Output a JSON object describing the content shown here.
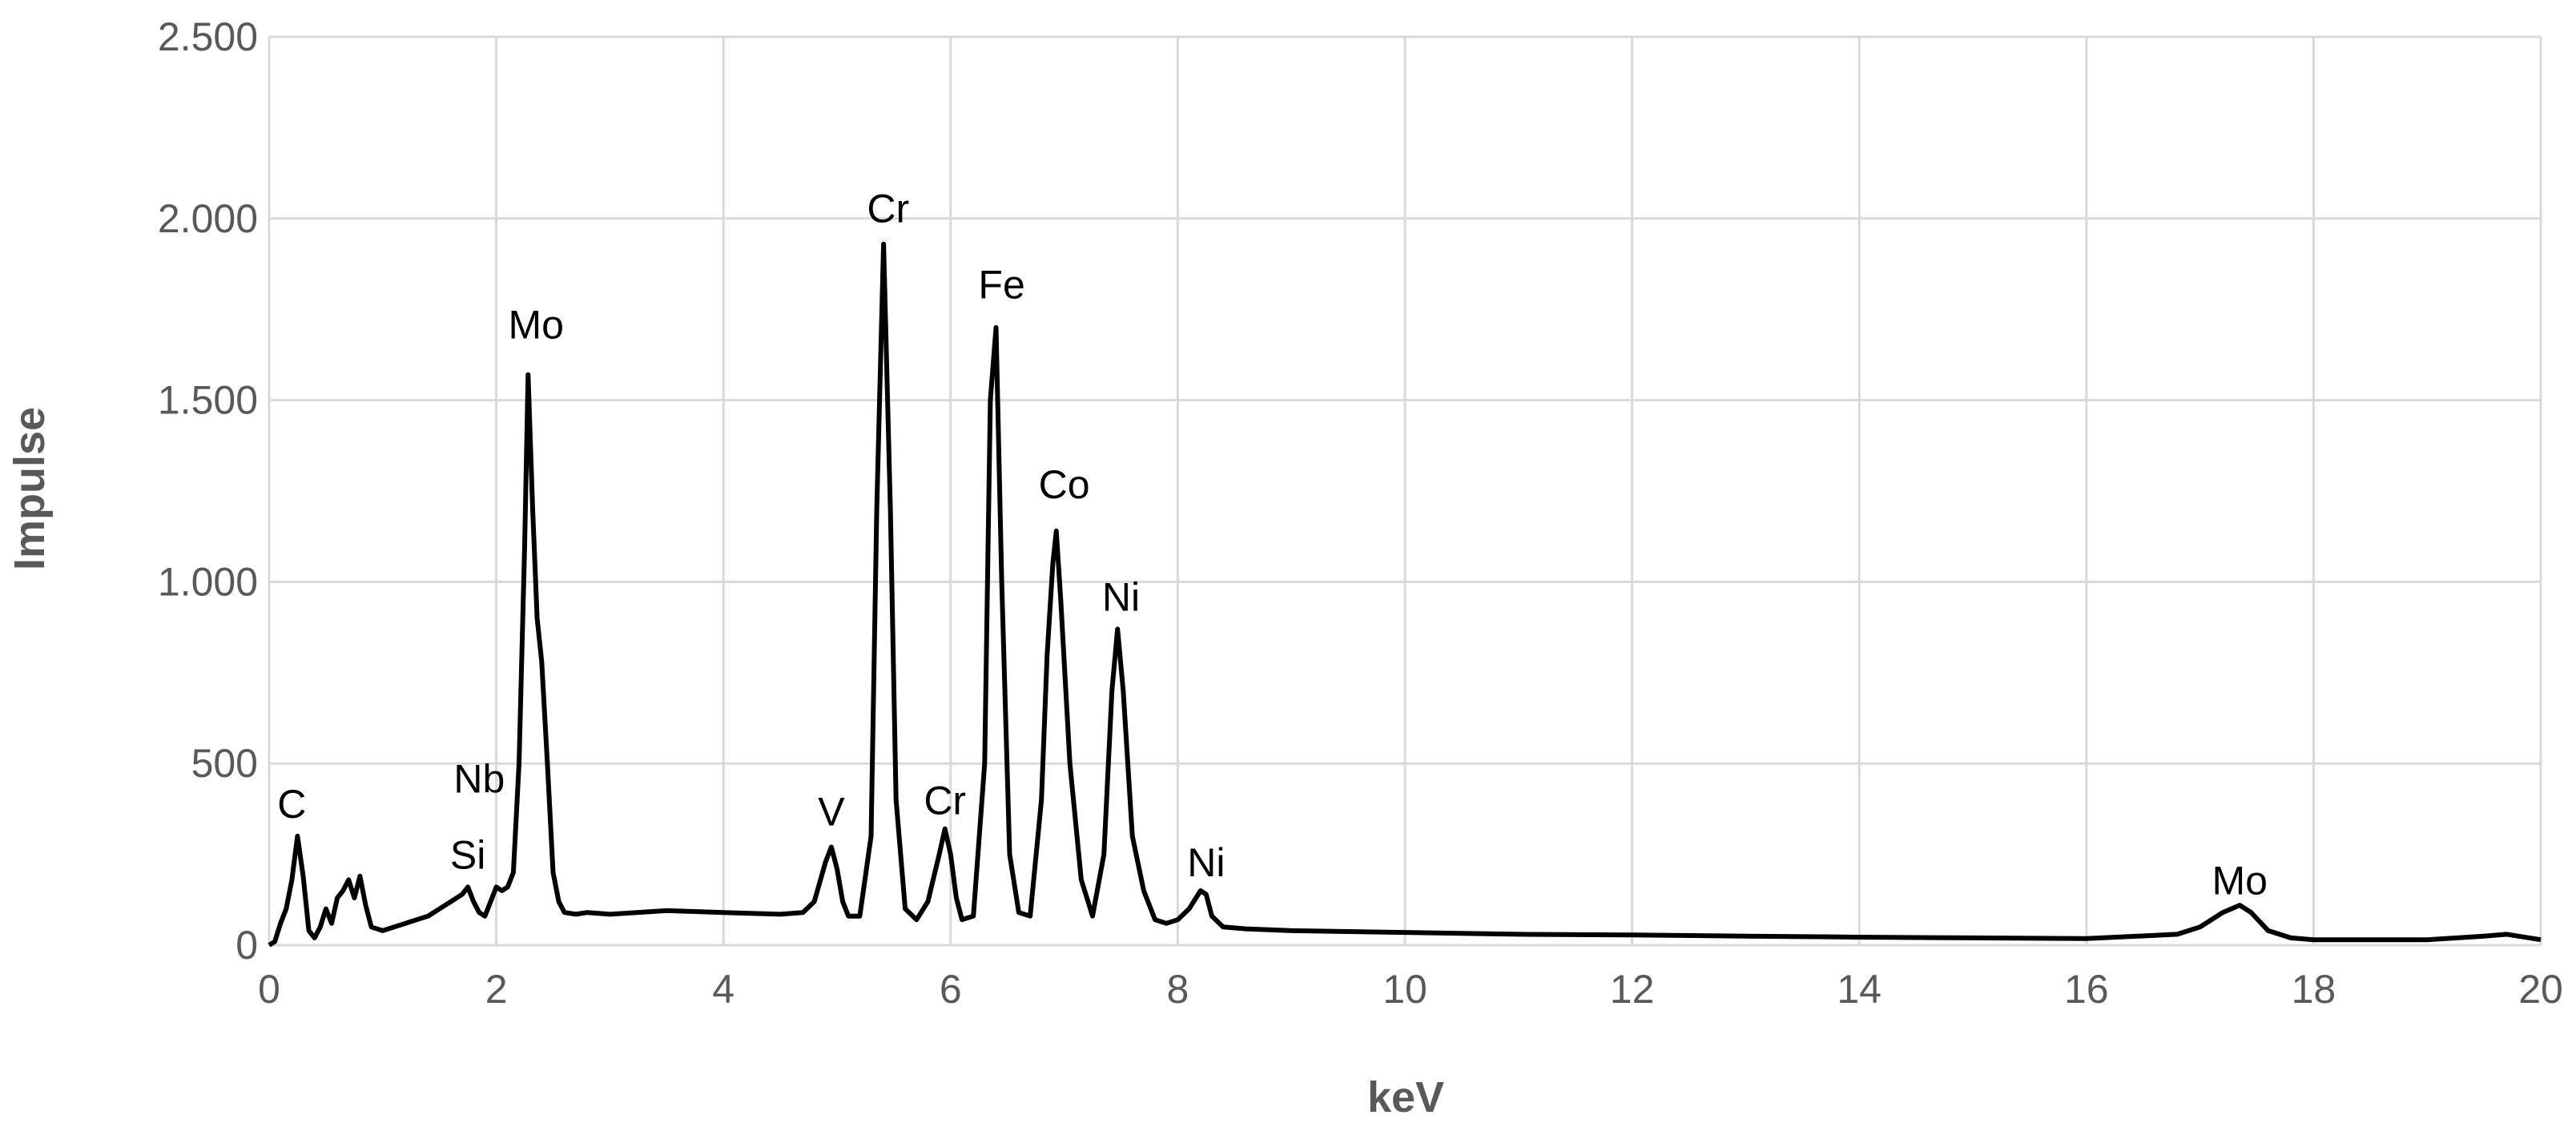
{
  "chart_data": {
    "type": "line",
    "xlabel": "keV",
    "ylabel": "Impulse",
    "xlim": [
      0,
      20
    ],
    "ylim": [
      0,
      2500
    ],
    "x_ticks": [
      0,
      2,
      4,
      6,
      8,
      10,
      12,
      14,
      16,
      18,
      20
    ],
    "x_tick_labels": [
      "0",
      "2",
      "4",
      "6",
      "8",
      "10",
      "12",
      "14",
      "16",
      "18",
      "20"
    ],
    "y_ticks": [
      0,
      500,
      1000,
      1500,
      2000,
      2500
    ],
    "y_tick_labels": [
      "0",
      "500",
      "1.000",
      "1.500",
      "2.000",
      "2.500"
    ],
    "grid": true,
    "line_color": "#000000",
    "grid_color": "#d9d9d9",
    "series": [
      {
        "x": [
          0.0,
          0.05,
          0.1,
          0.15,
          0.2,
          0.25,
          0.3,
          0.35,
          0.4,
          0.45,
          0.5,
          0.55,
          0.6,
          0.65,
          0.7,
          0.75,
          0.8,
          0.85,
          0.9,
          1.0,
          1.1,
          1.2,
          1.3,
          1.4,
          1.5,
          1.6,
          1.7,
          1.75,
          1.8,
          1.85,
          1.9,
          1.95,
          2.0,
          2.05,
          2.1,
          2.15,
          2.2,
          2.25,
          2.28,
          2.32,
          2.36,
          2.4,
          2.45,
          2.5,
          2.55,
          2.6,
          2.7,
          2.8,
          3.0,
          3.5,
          4.0,
          4.5,
          4.7,
          4.8,
          4.9,
          4.95,
          5.0,
          5.05,
          5.1,
          5.2,
          5.3,
          5.35,
          5.41,
          5.47,
          5.52,
          5.6,
          5.7,
          5.8,
          5.9,
          5.95,
          6.0,
          6.05,
          6.1,
          6.2,
          6.3,
          6.35,
          6.4,
          6.45,
          6.52,
          6.6,
          6.7,
          6.8,
          6.85,
          6.9,
          6.93,
          6.97,
          7.05,
          7.15,
          7.25,
          7.35,
          7.42,
          7.47,
          7.52,
          7.6,
          7.7,
          7.8,
          7.9,
          8.0,
          8.1,
          8.2,
          8.25,
          8.3,
          8.4,
          8.6,
          9.0,
          10.0,
          11.0,
          12.0,
          13.0,
          14.0,
          15.0,
          16.0,
          16.8,
          17.0,
          17.2,
          17.35,
          17.45,
          17.6,
          17.8,
          18.0,
          19.0,
          19.5,
          19.7,
          20.0
        ],
        "y": [
          0,
          10,
          60,
          100,
          180,
          300,
          190,
          40,
          20,
          50,
          100,
          60,
          130,
          150,
          180,
          130,
          190,
          110,
          50,
          40,
          50,
          60,
          70,
          80,
          100,
          120,
          140,
          160,
          120,
          90,
          80,
          120,
          160,
          150,
          160,
          200,
          500,
          1100,
          1570,
          1200,
          900,
          780,
          500,
          200,
          120,
          90,
          85,
          90,
          85,
          95,
          90,
          85,
          90,
          120,
          230,
          270,
          210,
          120,
          80,
          80,
          300,
          1200,
          1930,
          1200,
          400,
          100,
          70,
          120,
          250,
          320,
          250,
          130,
          70,
          80,
          500,
          1500,
          1700,
          1000,
          250,
          90,
          80,
          400,
          800,
          1050,
          1140,
          950,
          500,
          180,
          80,
          250,
          700,
          870,
          700,
          300,
          150,
          70,
          60,
          70,
          100,
          150,
          140,
          80,
          50,
          45,
          40,
          35,
          30,
          28,
          25,
          22,
          20,
          18,
          30,
          50,
          90,
          110,
          90,
          40,
          20,
          15,
          15,
          25,
          30,
          15
        ]
      }
    ],
    "annotations": [
      {
        "text": "C",
        "x": 0.2,
        "y": 350
      },
      {
        "text": "Si",
        "x": 1.75,
        "y": 210
      },
      {
        "text": "Nb",
        "x": 1.85,
        "y": 420
      },
      {
        "text": "Mo",
        "x": 2.35,
        "y": 1670
      },
      {
        "text": "V",
        "x": 4.95,
        "y": 330
      },
      {
        "text": "Cr",
        "x": 5.45,
        "y": 1990
      },
      {
        "text": "Cr",
        "x": 5.95,
        "y": 360
      },
      {
        "text": "Fe",
        "x": 6.45,
        "y": 1780
      },
      {
        "text": "Co",
        "x": 7.0,
        "y": 1230
      },
      {
        "text": "Ni",
        "x": 7.5,
        "y": 920
      },
      {
        "text": "Ni",
        "x": 8.25,
        "y": 190
      },
      {
        "text": "Mo",
        "x": 17.35,
        "y": 140
      }
    ]
  }
}
